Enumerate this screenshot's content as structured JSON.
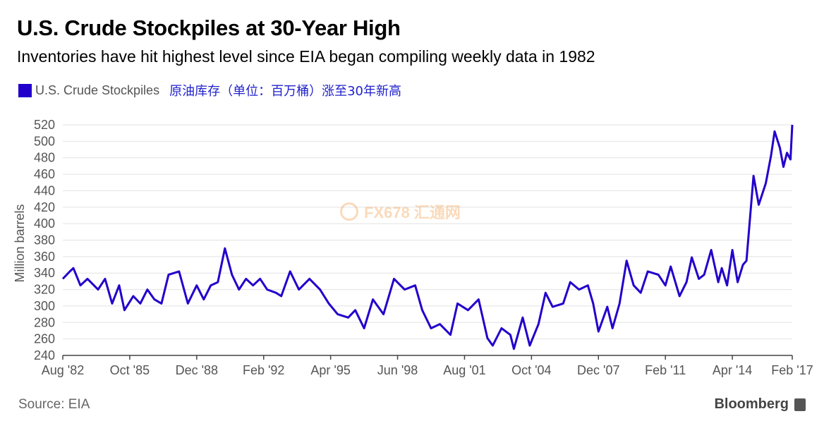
{
  "chart_data": {
    "type": "line",
    "title": "U.S. Crude Stockpiles at 30-Year High",
    "subtitle": "Inventories have hit highest level since EIA began compiling weekly data in 1982",
    "legend": {
      "label": "U.S. Crude Stockpiles",
      "note": "原油库存（单位：百万桶）涨至30年新高",
      "placement": "top-left"
    },
    "ylabel": "Million barrels",
    "xlabel": "",
    "ylim": [
      240,
      520
    ],
    "yticks": [
      240,
      260,
      280,
      300,
      320,
      340,
      360,
      380,
      400,
      420,
      440,
      460,
      480,
      500,
      520
    ],
    "xlim": [
      "1982-08",
      "2017-02"
    ],
    "xticks": [
      {
        "date": "1982-08",
        "label": "Aug '82"
      },
      {
        "date": "1985-10",
        "label": "Oct '85"
      },
      {
        "date": "1988-12",
        "label": "Dec '88"
      },
      {
        "date": "1992-02",
        "label": "Feb '92"
      },
      {
        "date": "1995-04",
        "label": "Apr '95"
      },
      {
        "date": "1998-06",
        "label": "Jun '98"
      },
      {
        "date": "2001-08",
        "label": "Aug '01"
      },
      {
        "date": "2004-10",
        "label": "Oct '04"
      },
      {
        "date": "2007-12",
        "label": "Dec '07"
      },
      {
        "date": "2011-02",
        "label": "Feb '11"
      },
      {
        "date": "2014-04",
        "label": "Apr '14"
      },
      {
        "date": "2017-02",
        "label": "Feb '17"
      }
    ],
    "grid": true,
    "color": "#2200cc",
    "series": [
      {
        "name": "U.S. Crude Stockpiles",
        "x": [
          "1982-08",
          "1982-12",
          "1983-02",
          "1983-06",
          "1983-10",
          "1984-04",
          "1984-08",
          "1984-12",
          "1985-04",
          "1985-07",
          "1985-12",
          "1986-04",
          "1986-08",
          "1986-12",
          "1987-04",
          "1987-08",
          "1988-02",
          "1988-07",
          "1988-12",
          "1989-04",
          "1989-08",
          "1989-12",
          "1990-04",
          "1990-08",
          "1990-12",
          "1991-04",
          "1991-08",
          "1991-12",
          "1992-04",
          "1992-09",
          "1992-12",
          "1993-05",
          "1993-10",
          "1994-04",
          "1994-10",
          "1995-03",
          "1995-08",
          "1996-02",
          "1996-06",
          "1996-11",
          "1997-04",
          "1997-10",
          "1998-04",
          "1998-10",
          "1999-04",
          "1999-08",
          "2000-01",
          "2000-06",
          "2000-12",
          "2001-04",
          "2001-10",
          "2002-04",
          "2002-09",
          "2002-12",
          "2003-05",
          "2003-10",
          "2003-12",
          "2004-05",
          "2004-09",
          "2005-02",
          "2005-06",
          "2005-10",
          "2006-04",
          "2006-08",
          "2007-01",
          "2007-06",
          "2007-09",
          "2007-12",
          "2008-05",
          "2008-08",
          "2008-12",
          "2009-04",
          "2009-08",
          "2009-12",
          "2010-04",
          "2010-10",
          "2011-02",
          "2011-05",
          "2011-10",
          "2012-02",
          "2012-05",
          "2012-09",
          "2012-12",
          "2013-04",
          "2013-08",
          "2013-10",
          "2014-01",
          "2014-04",
          "2014-07",
          "2014-10",
          "2014-12",
          "2015-04",
          "2015-07",
          "2015-11",
          "2016-02",
          "2016-04",
          "2016-07",
          "2016-09",
          "2016-11",
          "2017-01",
          "2017-02"
        ],
        "values": [
          333,
          342,
          346,
          325,
          333,
          320,
          333,
          303,
          325,
          295,
          312,
          303,
          320,
          308,
          303,
          338,
          342,
          303,
          325,
          308,
          325,
          329,
          370,
          338,
          320,
          333,
          325,
          333,
          320,
          316,
          312,
          342,
          320,
          333,
          320,
          303,
          290,
          286,
          295,
          273,
          308,
          290,
          333,
          320,
          325,
          295,
          273,
          278,
          265,
          303,
          295,
          308,
          261,
          252,
          273,
          265,
          248,
          286,
          252,
          278,
          316,
          299,
          303,
          329,
          320,
          325,
          303,
          269,
          299,
          273,
          303,
          355,
          325,
          316,
          342,
          338,
          325,
          348,
          312,
          329,
          359,
          333,
          338,
          368,
          329,
          346,
          325,
          368,
          329,
          350,
          355,
          458,
          423,
          449,
          483,
          512,
          492,
          469,
          486,
          478,
          520
        ]
      }
    ]
  },
  "source": "Source: EIA",
  "brand": "Bloomberg",
  "watermark": "FX678 汇通网"
}
